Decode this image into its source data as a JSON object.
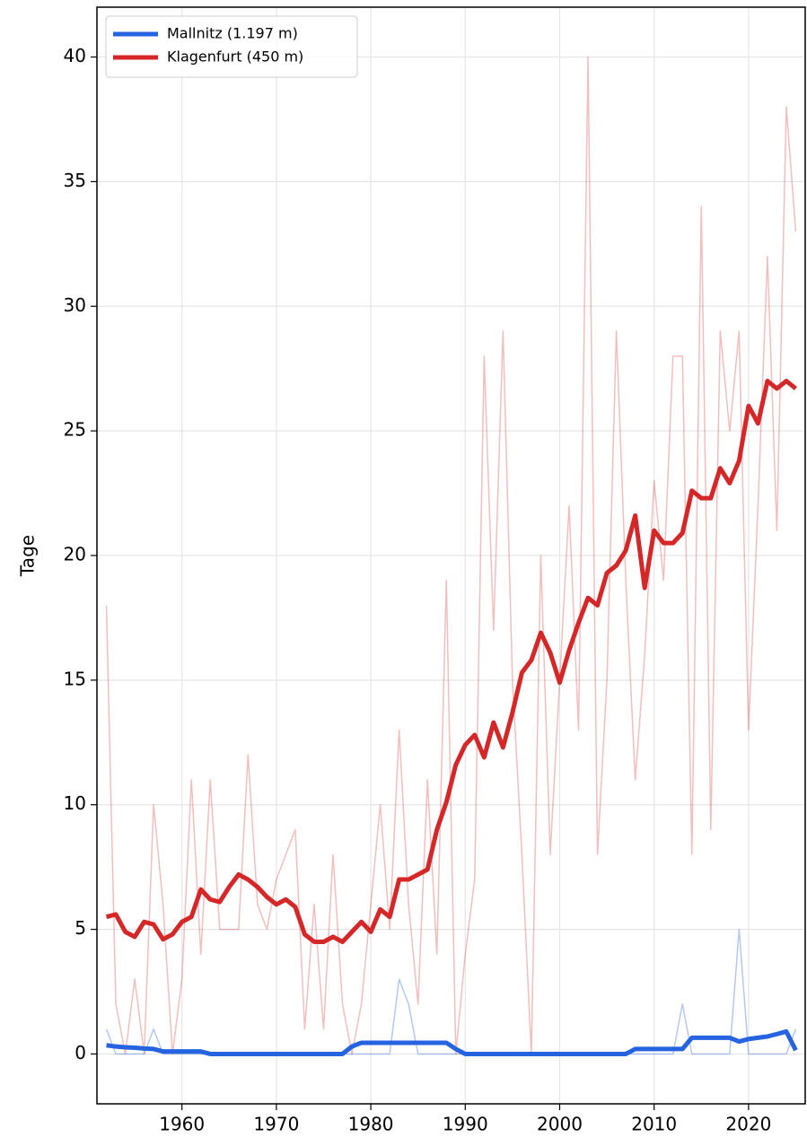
{
  "chart_data": {
    "type": "line",
    "ylabel": "Tage",
    "x": [
      1952,
      1953,
      1954,
      1955,
      1956,
      1957,
      1958,
      1959,
      1960,
      1961,
      1962,
      1963,
      1964,
      1965,
      1966,
      1967,
      1968,
      1969,
      1970,
      1971,
      1972,
      1973,
      1974,
      1975,
      1976,
      1977,
      1978,
      1979,
      1980,
      1981,
      1982,
      1983,
      1984,
      1985,
      1986,
      1987,
      1988,
      1989,
      1990,
      1991,
      1992,
      1993,
      1994,
      1995,
      1996,
      1997,
      1998,
      1999,
      2000,
      2001,
      2002,
      2003,
      2004,
      2005,
      2006,
      2007,
      2008,
      2009,
      2010,
      2011,
      2012,
      2013,
      2014,
      2015,
      2016,
      2017,
      2018,
      2019,
      2020,
      2021,
      2022,
      2023,
      2024,
      2025
    ],
    "series": [
      {
        "color": "#2563e0",
        "alpha": 0.35,
        "linewidth": 1.5,
        "values": [
          1,
          0,
          0,
          0,
          0,
          1,
          0,
          0,
          0,
          0,
          0,
          0,
          0,
          0,
          0,
          0,
          0,
          0,
          0,
          0,
          0,
          0,
          0,
          0,
          0,
          0,
          0,
          0,
          0,
          0,
          0,
          3,
          2,
          0,
          0,
          0,
          0,
          0,
          0,
          0,
          0,
          0,
          0,
          0,
          0,
          0,
          0,
          0,
          0,
          0,
          0,
          0,
          0,
          0,
          0,
          0,
          0,
          0,
          0,
          0,
          0,
          2,
          0,
          0,
          0,
          0,
          0,
          5,
          0,
          0,
          0,
          0,
          0,
          1
        ]
      },
      {
        "color": "#d62728",
        "alpha": 0.3,
        "linewidth": 1.5,
        "values": [
          18,
          2,
          0,
          3,
          0,
          10,
          6,
          0,
          3,
          11,
          4,
          11,
          5,
          5,
          5,
          12,
          6,
          5,
          7,
          8,
          9,
          1,
          6,
          1,
          8,
          2,
          0,
          2,
          6,
          10,
          5,
          13,
          6,
          2,
          11,
          4,
          19,
          0,
          4,
          7,
          28,
          17,
          29,
          15,
          8,
          0,
          20,
          8,
          15,
          22,
          13,
          40,
          8,
          15,
          29,
          19,
          11,
          16,
          23,
          19,
          28,
          28,
          8,
          34,
          9,
          29,
          25,
          29,
          13,
          22,
          32,
          21,
          38,
          33
        ]
      },
      {
        "name": "Mallnitz (1.197 m)",
        "color": "#2563e0",
        "alpha": 1,
        "linewidth": 5,
        "values": [
          0.35,
          0.3,
          0.27,
          0.25,
          0.22,
          0.2,
          0.1,
          0.1,
          0.1,
          0.1,
          0.1,
          0,
          0,
          0,
          0,
          0,
          0,
          0,
          0,
          0,
          0,
          0,
          0,
          0,
          0,
          0,
          0.3,
          0.45,
          0.45,
          0.45,
          0.45,
          0.45,
          0.45,
          0.45,
          0.45,
          0.45,
          0.45,
          0.2,
          0,
          0,
          0,
          0,
          0,
          0,
          0,
          0,
          0,
          0,
          0,
          0,
          0,
          0,
          0,
          0,
          0,
          0,
          0.2,
          0.2,
          0.2,
          0.2,
          0.2,
          0.2,
          0.65,
          0.65,
          0.65,
          0.65,
          0.65,
          0.5,
          0.6,
          0.65,
          0.7,
          0.8,
          0.9,
          0.15
        ]
      },
      {
        "name": "Klagenfurt (450 m)",
        "color": "#d62728",
        "alpha": 1,
        "linewidth": 5,
        "values": [
          5.5,
          5.6,
          4.9,
          4.7,
          5.3,
          5.2,
          4.6,
          4.8,
          5.3,
          5.5,
          6.6,
          6.2,
          6.1,
          6.7,
          7.2,
          7.0,
          6.7,
          6.3,
          6.0,
          6.2,
          5.9,
          4.8,
          4.5,
          4.5,
          4.7,
          4.5,
          4.9,
          5.3,
          4.9,
          5.8,
          5.5,
          7.0,
          7.0,
          7.2,
          7.4,
          9.0,
          10.1,
          11.6,
          12.4,
          12.8,
          11.9,
          13.3,
          12.3,
          13.7,
          15.3,
          15.8,
          16.9,
          16.1,
          14.9,
          16.2,
          17.3,
          18.3,
          18.0,
          19.3,
          19.6,
          20.2,
          21.6,
          18.7,
          21.0,
          20.5,
          20.5,
          20.9,
          22.6,
          22.3,
          22.3,
          23.5,
          22.9,
          23.8,
          26.0,
          25.3,
          27.0,
          26.7,
          27.0,
          26.7
        ]
      }
    ],
    "xlim": [
      1951,
      2026
    ],
    "xticks": [
      1960,
      1970,
      1980,
      1990,
      2000,
      2010,
      2020
    ],
    "ylim": [
      -2,
      42
    ],
    "yticks": [
      0,
      5,
      10,
      15,
      20,
      25,
      30,
      35,
      40
    ],
    "grid": true,
    "legend": "upper left"
  }
}
